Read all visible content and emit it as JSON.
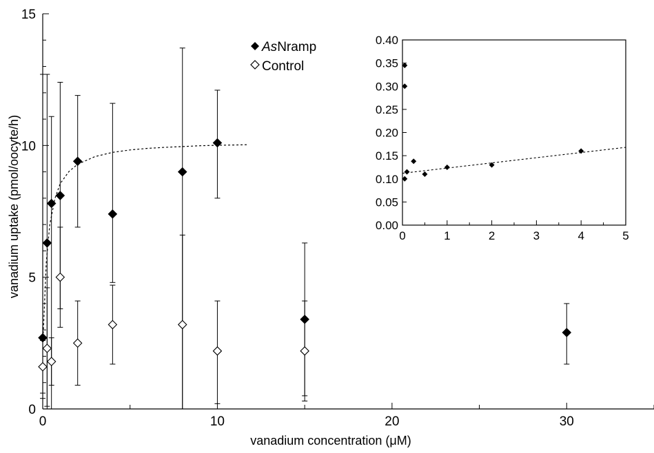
{
  "chart_data": [
    {
      "type": "scatter",
      "xlabel": "vanadium concentration (μM)",
      "ylabel": "vanadium uptake (pmol/oocyte/h)",
      "xlim": [
        0,
        35
      ],
      "ylim": [
        0,
        15
      ],
      "x_ticks": [
        "0",
        "10",
        "20",
        "30"
      ],
      "y_ticks": [
        "0",
        "5",
        "10",
        "15"
      ],
      "grid": false,
      "legend_position": "top-center",
      "series": [
        {
          "name": "AsNramp",
          "legend_italic_prefix": "As",
          "legend_rest": "Nramp",
          "marker": "filled-diamond",
          "color": "#000000",
          "points": [
            {
              "x": 0,
              "y": 2.7,
              "err_low": 0.4,
              "err_high": 12.7
            },
            {
              "x": 0.25,
              "y": 6.3,
              "err_low": 0.1,
              "err_high": 12.7
            },
            {
              "x": 0.5,
              "y": 7.8,
              "err_low": 0,
              "err_high": 11.1
            },
            {
              "x": 1,
              "y": 8.1,
              "err_low": 3.8,
              "err_high": 12.4
            },
            {
              "x": 2,
              "y": 9.4,
              "err_low": 6.9,
              "err_high": 11.9
            },
            {
              "x": 4,
              "y": 7.4,
              "err_low": 4.8,
              "err_high": 11.6
            },
            {
              "x": 8,
              "y": 9.0,
              "err_low": 0,
              "err_high": 13.7
            },
            {
              "x": 10,
              "y": 10.1,
              "err_low": 8.0,
              "err_high": 12.1
            },
            {
              "x": 15,
              "y": 3.4,
              "err_low": 0.5,
              "err_high": 6.3
            },
            {
              "x": 30,
              "y": 2.9,
              "err_low": 1.7,
              "err_high": 4.0
            }
          ],
          "fit": [
            [
              0.02,
              2.71
            ],
            [
              0.2,
              5.54
            ],
            [
              0.4,
              6.98
            ],
            [
              0.7,
              7.99
            ],
            [
              1,
              8.55
            ],
            [
              1.5,
              9.01
            ],
            [
              2,
              9.29
            ],
            [
              3,
              9.58
            ],
            [
              4,
              9.74
            ],
            [
              5,
              9.83
            ],
            [
              6,
              9.89
            ],
            [
              7,
              9.93
            ],
            [
              8,
              9.96
            ],
            [
              9,
              9.99
            ],
            [
              10,
              10.01
            ],
            [
              11,
              10.02
            ],
            [
              11.7,
              10.03
            ]
          ]
        },
        {
          "name": "Control",
          "marker": "open-diamond",
          "color": "#000000",
          "points": [
            {
              "x": 0,
              "y": 1.6,
              "err_low": 0.6,
              "err_high": 2.6
            },
            {
              "x": 0.25,
              "y": 2.3,
              "err_low": 0,
              "err_high": 4.6
            },
            {
              "x": 0.5,
              "y": 1.8,
              "err_low": 0.9,
              "err_high": 2.7
            },
            {
              "x": 1,
              "y": 5.0,
              "err_low": 3.1,
              "err_high": 6.9
            },
            {
              "x": 2,
              "y": 2.5,
              "err_low": 0.9,
              "err_high": 4.1
            },
            {
              "x": 4,
              "y": 3.2,
              "err_low": 1.7,
              "err_high": 4.7
            },
            {
              "x": 8,
              "y": 3.2,
              "err_low": 0,
              "err_high": 6.6
            },
            {
              "x": 10,
              "y": 2.2,
              "err_low": 0.2,
              "err_high": 4.1
            },
            {
              "x": 15,
              "y": 2.2,
              "err_low": 0.3,
              "err_high": 4.1
            }
          ]
        }
      ]
    },
    {
      "type": "scatter",
      "inset": true,
      "xlim": [
        0,
        5
      ],
      "ylim": [
        0,
        0.4
      ],
      "x_ticks": [
        "0",
        "1",
        "2",
        "3",
        "4",
        "5"
      ],
      "y_ticks": [
        "0.00",
        "0.05",
        "0.10",
        "0.15",
        "0.20",
        "0.25",
        "0.30",
        "0.35",
        "0.40"
      ],
      "grid": false,
      "series": [
        {
          "marker": "small-filled-diamond",
          "color": "#000000",
          "points": [
            {
              "x": 0.05,
              "y": 0.345
            },
            {
              "x": 0.05,
              "y": 0.3
            },
            {
              "x": 0.05,
              "y": 0.1
            },
            {
              "x": 0.1,
              "y": 0.115
            },
            {
              "x": 0.25,
              "y": 0.138
            },
            {
              "x": 0.5,
              "y": 0.11
            },
            {
              "x": 1,
              "y": 0.125
            },
            {
              "x": 2,
              "y": 0.13
            },
            {
              "x": 4,
              "y": 0.16
            }
          ],
          "fit": [
            [
              0,
              0.112
            ],
            [
              5,
              0.168
            ]
          ]
        }
      ]
    }
  ]
}
